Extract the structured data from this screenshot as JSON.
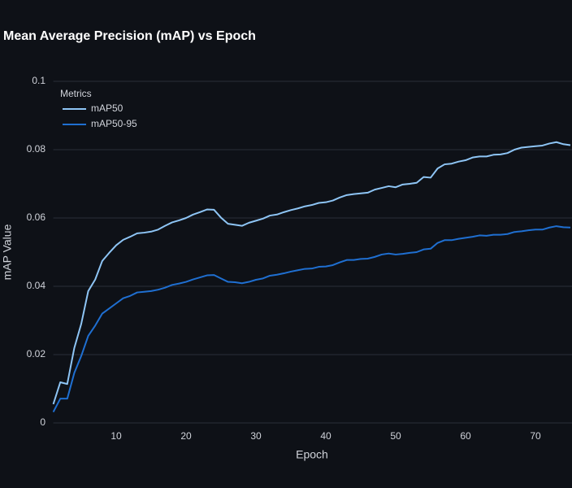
{
  "chart_data": {
    "type": "line",
    "title": "Mean Average Precision (mAP) vs Epoch",
    "x_label": "Epoch",
    "y_label": "mAP Value",
    "legend_title": "Metrics",
    "legend_position": "upper left",
    "grid": true,
    "x": [
      1,
      2,
      3,
      4,
      5,
      6,
      7,
      8,
      9,
      10,
      11,
      12,
      13,
      14,
      15,
      16,
      17,
      18,
      19,
      20,
      21,
      22,
      23,
      24,
      25,
      26,
      27,
      28,
      29,
      30,
      31,
      32,
      33,
      34,
      35,
      36,
      37,
      38,
      39,
      40,
      41,
      42,
      43,
      44,
      45,
      46,
      47,
      48,
      49,
      50,
      51,
      52,
      53,
      54,
      55,
      56,
      57,
      58,
      59,
      60,
      61,
      62,
      63,
      64,
      65,
      66,
      67,
      68,
      69,
      70,
      71,
      72,
      73,
      74,
      75
    ],
    "series": [
      {
        "name": "mAP50",
        "color": "#8ec5f5",
        "values": [
          0.0055,
          0.0119,
          0.0114,
          0.0219,
          0.029,
          0.0386,
          0.042,
          0.0474,
          0.0498,
          0.052,
          0.0536,
          0.0545,
          0.0555,
          0.0557,
          0.056,
          0.0566,
          0.0577,
          0.0587,
          0.0593,
          0.06,
          0.061,
          0.0617,
          0.0625,
          0.0624,
          0.0601,
          0.0583,
          0.058,
          0.0577,
          0.0586,
          0.0592,
          0.0598,
          0.0607,
          0.061,
          0.0617,
          0.0623,
          0.0628,
          0.0634,
          0.0638,
          0.0644,
          0.0646,
          0.0651,
          0.066,
          0.0667,
          0.067,
          0.0672,
          0.0674,
          0.0683,
          0.0688,
          0.0693,
          0.069,
          0.0698,
          0.07,
          0.0703,
          0.072,
          0.0718,
          0.0745,
          0.0757,
          0.0759,
          0.0765,
          0.0769,
          0.0777,
          0.078,
          0.078,
          0.0785,
          0.0786,
          0.079,
          0.08,
          0.0806,
          0.0808,
          0.081,
          0.0812,
          0.0818,
          0.0822,
          0.0816,
          0.0813
        ]
      },
      {
        "name": "mAP50-95",
        "color": "#1f6fd1",
        "values": [
          0.0032,
          0.0071,
          0.0071,
          0.0146,
          0.0196,
          0.0255,
          0.0285,
          0.032,
          0.0335,
          0.035,
          0.0365,
          0.0372,
          0.0382,
          0.0384,
          0.0386,
          0.039,
          0.0396,
          0.0404,
          0.0408,
          0.0413,
          0.042,
          0.0426,
          0.0432,
          0.0433,
          0.0423,
          0.0413,
          0.0412,
          0.0409,
          0.0413,
          0.0419,
          0.0423,
          0.0431,
          0.0434,
          0.0438,
          0.0443,
          0.0447,
          0.0451,
          0.0452,
          0.0457,
          0.0458,
          0.0462,
          0.047,
          0.0477,
          0.0477,
          0.048,
          0.0481,
          0.0486,
          0.0493,
          0.0496,
          0.0493,
          0.0495,
          0.0498,
          0.05,
          0.0508,
          0.051,
          0.0527,
          0.0535,
          0.0535,
          0.0539,
          0.0542,
          0.0545,
          0.0549,
          0.0548,
          0.0551,
          0.0551,
          0.0553,
          0.0559,
          0.0561,
          0.0564,
          0.0566,
          0.0566,
          0.0572,
          0.0576,
          0.0573,
          0.0572
        ]
      }
    ],
    "xlim": [
      1,
      75
    ],
    "xticks": [
      10,
      20,
      30,
      40,
      50,
      60,
      70
    ],
    "ylim": [
      0,
      0.1
    ],
    "yticks": [
      0,
      0.02,
      0.04,
      0.06,
      0.08,
      0.1
    ]
  }
}
